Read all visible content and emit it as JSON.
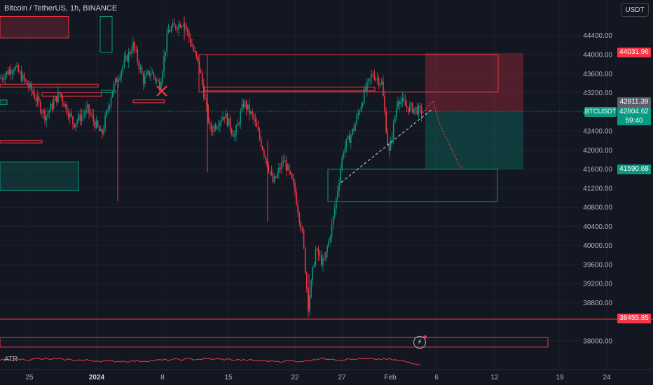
{
  "header": {
    "title": "Bitcoin / TetherUS, 1h, BINANCE",
    "currency_button": "USDT"
  },
  "indicator": {
    "label": "ATR"
  },
  "ticker": {
    "symbol": "BTCUSDT"
  },
  "price_tags": {
    "target_upper": "44031.96",
    "last_price": "42811.39",
    "current_price": "42804.62",
    "countdown": "59:40",
    "target_lower": "41590.68",
    "support_level": "38455.85"
  },
  "colors": {
    "background": "#131722",
    "up": "#089981",
    "down": "#f23645",
    "grid": "#1e222d",
    "text": "#b2b5be"
  },
  "icons": {
    "alert": "lightning-bolt-icon"
  },
  "chart_data": {
    "type": "candlestick",
    "title": "Bitcoin / TetherUS, 1h, BINANCE",
    "y_ticks": [
      44400,
      44000,
      43600,
      43200,
      42800,
      42400,
      42000,
      41600,
      41200,
      40800,
      40400,
      40000,
      39600,
      39200,
      38800,
      38000
    ],
    "ylim": [
      37800,
      44800
    ],
    "x_ticks": [
      "25",
      "2024",
      "8",
      "15",
      "22",
      "27",
      "Feb",
      "6",
      "12",
      "19",
      "24"
    ],
    "price_path": [
      [
        0,
        43500
      ],
      [
        20,
        43750
      ],
      [
        45,
        43250
      ],
      [
        65,
        42700
      ],
      [
        85,
        43200
      ],
      [
        105,
        42550
      ],
      [
        125,
        42850
      ],
      [
        145,
        42300
      ],
      [
        160,
        43250
      ],
      [
        175,
        43750
      ],
      [
        190,
        44200
      ],
      [
        205,
        43450
      ],
      [
        215,
        43650
      ],
      [
        228,
        43350
      ],
      [
        240,
        44500
      ],
      [
        262,
        44700
      ],
      [
        285,
        43700
      ],
      [
        300,
        42400
      ],
      [
        320,
        42750
      ],
      [
        335,
        42300
      ],
      [
        348,
        43000
      ],
      [
        362,
        42650
      ],
      [
        378,
        41900
      ],
      [
        390,
        41300
      ],
      [
        405,
        41800
      ],
      [
        420,
        41200
      ],
      [
        432,
        40200
      ],
      [
        440,
        38700
      ],
      [
        450,
        39900
      ],
      [
        462,
        39600
      ],
      [
        475,
        40500
      ],
      [
        490,
        42000
      ],
      [
        505,
        42450
      ],
      [
        520,
        43200
      ],
      [
        532,
        43600
      ],
      [
        545,
        43400
      ],
      [
        555,
        41900
      ],
      [
        568,
        43100
      ],
      [
        580,
        42900
      ],
      [
        595,
        42850
      ],
      [
        605,
        42750
      ]
    ],
    "levels": [
      {
        "label": "44031.96",
        "value": 44031.96,
        "color": "down"
      },
      {
        "label": "42811.39",
        "value": 42811.39,
        "color": "grey"
      },
      {
        "label": "41590.68",
        "value": 41590.68,
        "color": "up"
      },
      {
        "label": "38455.85",
        "value": 38455.85,
        "color": "down"
      }
    ],
    "trade_setup": {
      "direction": "short",
      "entry": 42811.39,
      "stop": 44031.96,
      "target": 41590.68
    },
    "annotations": [
      "trendline",
      "projection-path",
      "order-blocks",
      "cross-marker"
    ]
  }
}
